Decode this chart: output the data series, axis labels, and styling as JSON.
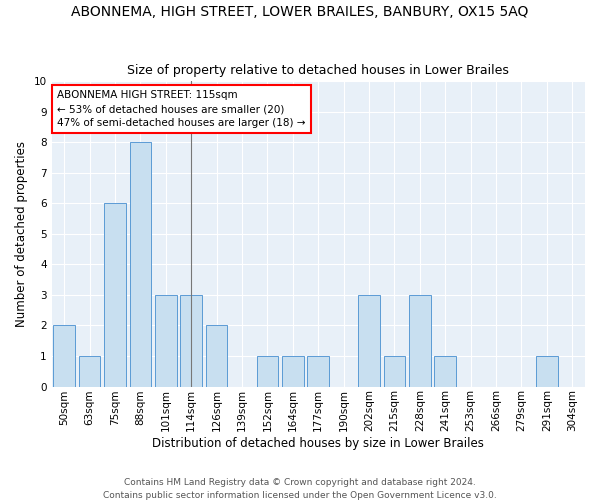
{
  "title": "ABONNEMA, HIGH STREET, LOWER BRAILES, BANBURY, OX15 5AQ",
  "subtitle": "Size of property relative to detached houses in Lower Brailes",
  "xlabel": "Distribution of detached houses by size in Lower Brailes",
  "ylabel": "Number of detached properties",
  "footer1": "Contains HM Land Registry data © Crown copyright and database right 2024.",
  "footer2": "Contains public sector information licensed under the Open Government Licence v3.0.",
  "annotation_title": "ABONNEMA HIGH STREET: 115sqm",
  "annotation_line2": "← 53% of detached houses are smaller (20)",
  "annotation_line3": "47% of semi-detached houses are larger (18) →",
  "categories": [
    "50sqm",
    "63sqm",
    "75sqm",
    "88sqm",
    "101sqm",
    "114sqm",
    "126sqm",
    "139sqm",
    "152sqm",
    "164sqm",
    "177sqm",
    "190sqm",
    "202sqm",
    "215sqm",
    "228sqm",
    "241sqm",
    "253sqm",
    "266sqm",
    "279sqm",
    "291sqm",
    "304sqm"
  ],
  "values": [
    2,
    1,
    6,
    8,
    3,
    3,
    2,
    0,
    1,
    1,
    1,
    0,
    3,
    1,
    3,
    1,
    0,
    0,
    0,
    1,
    0
  ],
  "bar_color": "#c8dff0",
  "bar_edge_color": "#5b9bd5",
  "annotation_box_color": "white",
  "annotation_border_color": "red",
  "ylim": [
    0,
    10
  ],
  "yticks": [
    0,
    1,
    2,
    3,
    4,
    5,
    6,
    7,
    8,
    9,
    10
  ],
  "background_color": "#e8f0f8",
  "grid_color": "white",
  "title_fontsize": 10,
  "subtitle_fontsize": 9,
  "axis_label_fontsize": 8.5,
  "tick_fontsize": 7.5,
  "annotation_fontsize": 7.5,
  "footer_fontsize": 6.5
}
